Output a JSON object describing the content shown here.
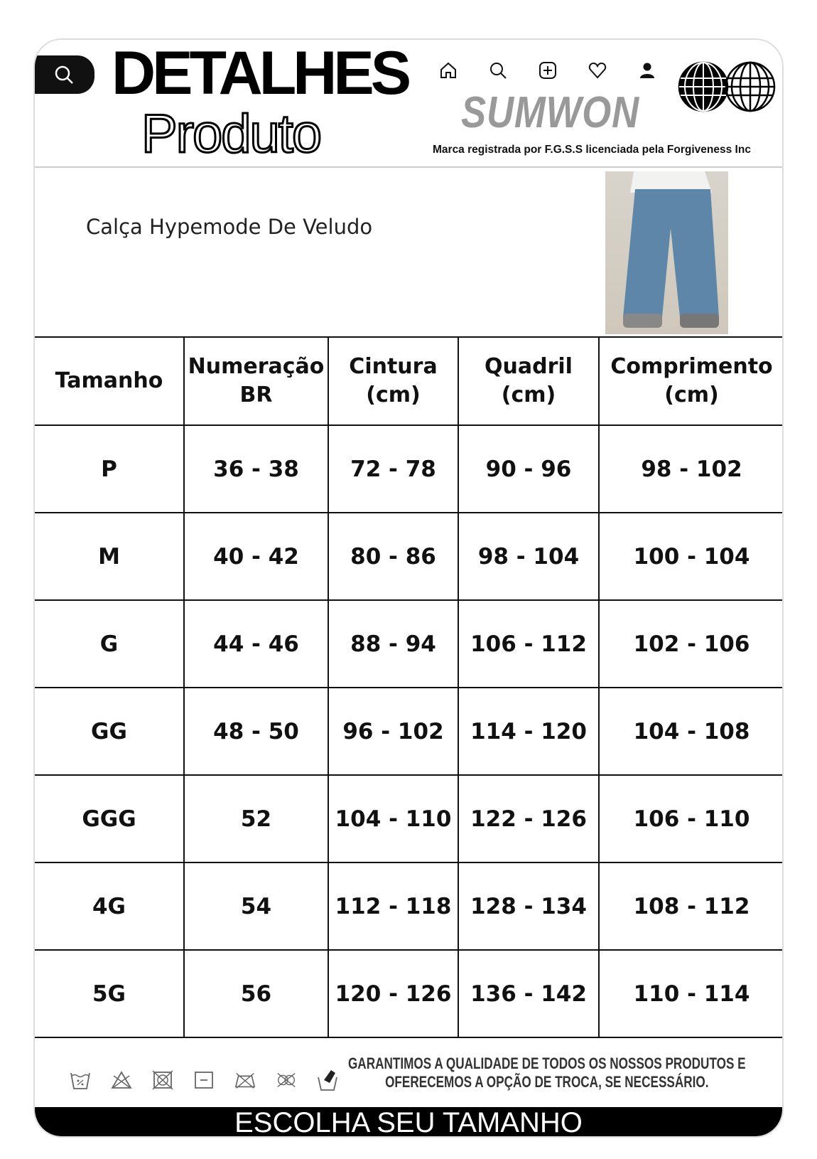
{
  "header": {
    "title_line1": "DETALHES",
    "title_line2": "Produto",
    "brand": "SUMWON",
    "tagline": "Marca registrada por F.G.S.S licenciada pela Forgiveness Inc",
    "nav_icons": [
      "home-icon",
      "search-icon",
      "add-icon",
      "heart-icon",
      "user-icon"
    ]
  },
  "product": {
    "name": "Calça Hypemode De Veludo"
  },
  "table": {
    "headers": [
      [
        "Tamanho"
      ],
      [
        "Numeração",
        "BR"
      ],
      [
        "Cintura",
        "(cm)"
      ],
      [
        "Quadril",
        "(cm)"
      ],
      [
        "Comprimento",
        "(cm)"
      ]
    ],
    "rows": [
      [
        "P",
        "36 - 38",
        "72 - 78",
        "90 - 96",
        "98 - 102"
      ],
      [
        "M",
        "40 - 42",
        "80 - 86",
        "98 - 104",
        "100 - 104"
      ],
      [
        "G",
        "44 - 46",
        "88 - 94",
        "106 - 112",
        "102 - 106"
      ],
      [
        "GG",
        "48 - 50",
        "96 - 102",
        "114 - 120",
        "104 - 108"
      ],
      [
        "GGG",
        "52",
        "104 - 110",
        "122 - 126",
        "106 - 110"
      ],
      [
        "4G",
        "54",
        "112 - 118",
        "128 - 134",
        "108 - 112"
      ],
      [
        "5G",
        "56",
        "120 - 126",
        "136 - 142",
        "110 - 114"
      ]
    ]
  },
  "footer": {
    "guarantee_line1": "GARANTIMOS A QUALIDADE DE TODOS OS NOSSOS PRODUTOS E",
    "guarantee_line2": "OFERECEMOS A OPÇÃO DE TROCA, SE NECESSÁRIO.",
    "banner": "ESCOLHA SEU TAMANHO",
    "care_icons": [
      "wash-30-icon",
      "no-bleach-icon",
      "no-tumble-dry-icon",
      "dry-flat-icon",
      "no-iron-icon",
      "no-dry-clean-icon",
      "hand-wash-icon"
    ]
  }
}
